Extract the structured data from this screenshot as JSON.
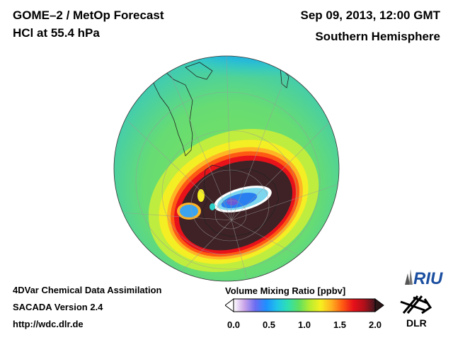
{
  "header": {
    "product": "GOME–2 / MetOp Forecast",
    "species": "HCl at 55.4 hPa",
    "datetime": "Sep 09, 2013, 12:00 GMT",
    "hemisphere": "Southern Hemisphere"
  },
  "footer": {
    "method": "4DVar Chemical Data Assimilation",
    "version": "SACADA Version 2.4",
    "website": "http://wdc.dlr.de"
  },
  "colorbar": {
    "title": "Volume Mixing Ratio [ppbv]",
    "ticks": [
      "0.0",
      "0.5",
      "1.0",
      "1.5",
      "2.0"
    ],
    "range": [
      0.0,
      2.0
    ],
    "colors": [
      "#ffffff",
      "#c9a3e8",
      "#6a6cf2",
      "#1e90ff",
      "#20c5e8",
      "#2fe0b0",
      "#5fe060",
      "#b8ec30",
      "#f6f020",
      "#ffb020",
      "#ff5a12",
      "#e8101a",
      "#b0101a",
      "#401820"
    ]
  },
  "logos": {
    "riu_text": "RIU",
    "dlr_text": "DLR"
  }
}
